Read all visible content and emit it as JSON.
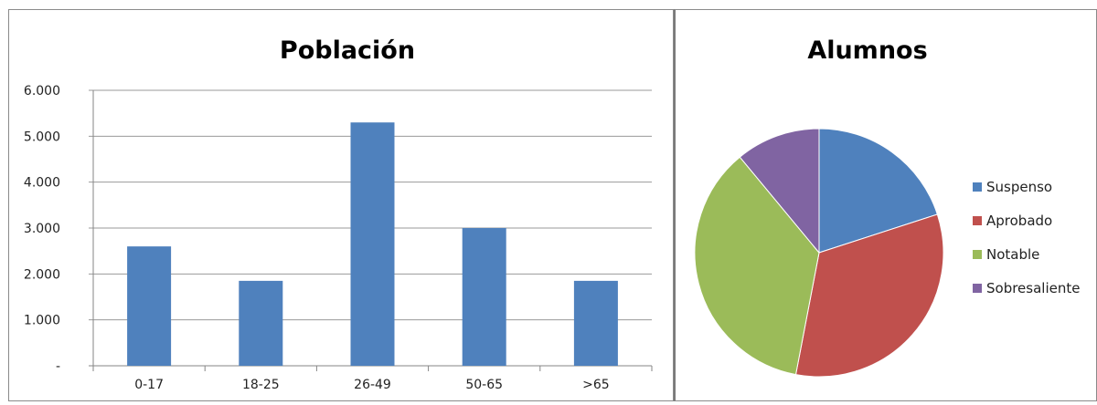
{
  "chart_data": [
    {
      "type": "bar",
      "title": "Población",
      "categories": [
        "0-17",
        "18-25",
        "26-49",
        "50-65",
        ">65"
      ],
      "values": [
        2600,
        1850,
        5300,
        3000,
        1850
      ],
      "ylim": [
        0,
        6000
      ],
      "yticks": [
        0,
        1000,
        2000,
        3000,
        4000,
        5000,
        6000
      ],
      "ytick_labels": [
        "-",
        "1.000",
        "2.000",
        "3.000",
        "4.000",
        "5.000",
        "6.000"
      ],
      "grid": true,
      "bar_color": "#4F81BD"
    },
    {
      "type": "pie",
      "title": "Alumnos",
      "labels": [
        "Suspenso",
        "Aprobado",
        "Notable",
        "Sobresaliente"
      ],
      "values": [
        20,
        33,
        36,
        11
      ],
      "colors": [
        "#4F81BD",
        "#C0504D",
        "#9BBB59",
        "#8064A2"
      ],
      "legend": "right"
    }
  ]
}
